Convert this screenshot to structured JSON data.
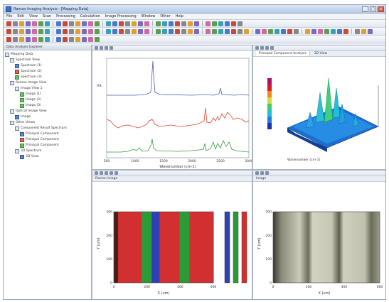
{
  "window": {
    "title": "Raman Imaging Analysis - [Mapping Data]"
  },
  "menu": [
    "File",
    "Edit",
    "View",
    "Scan",
    "Processing",
    "Calculation",
    "Image Processing",
    "Window",
    "Other",
    "Help"
  ],
  "left_panel": {
    "header": "Data Analysis Explorer",
    "tree": [
      {
        "label": "Mapping Data",
        "depth": 0,
        "icon": "folder"
      },
      {
        "label": "Spectrum View",
        "depth": 1,
        "icon": "folder"
      },
      {
        "label": "Spectrum (1)",
        "depth": 2,
        "icon": "blue"
      },
      {
        "label": "Spectrum (2)",
        "depth": 2,
        "icon": "red"
      },
      {
        "label": "Spectrum (3)",
        "depth": 2,
        "icon": "green"
      },
      {
        "label": "Raman Image View",
        "depth": 1,
        "icon": "folder"
      },
      {
        "label": "Image View 1",
        "depth": 2,
        "icon": "folder"
      },
      {
        "label": "Image (1)",
        "depth": 3,
        "icon": "green"
      },
      {
        "label": "Image (2)",
        "depth": 3,
        "icon": "green"
      },
      {
        "label": "Image (3)",
        "depth": 3,
        "icon": "green"
      },
      {
        "label": "Optical Image View",
        "depth": 1,
        "icon": "folder"
      },
      {
        "label": "Image",
        "depth": 2,
        "icon": "blue"
      },
      {
        "label": "Other Views",
        "depth": 1,
        "icon": "folder"
      },
      {
        "label": "Component Result Spectrum",
        "depth": 2,
        "icon": "folder"
      },
      {
        "label": "Principal Component",
        "depth": 3,
        "icon": "blue"
      },
      {
        "label": "Principal Component",
        "depth": 3,
        "icon": "red"
      },
      {
        "label": "Principal Component",
        "depth": 3,
        "icon": "green"
      },
      {
        "label": "3D Spectrum",
        "depth": 2,
        "icon": "folder"
      },
      {
        "label": "3D View",
        "depth": 3,
        "icon": "blue"
      }
    ]
  },
  "spectrum_pane": {
    "xlabel": "Wavenumber (cm-1)",
    "ylabel": "Int.",
    "xticks": [
      "500",
      "1000",
      "1500",
      "2000",
      "2500",
      "3000"
    ],
    "colors": {
      "blue": "#4a5fb8",
      "red": "#e0422c",
      "green": "#3a9a3a"
    }
  },
  "surface_pane": {
    "tabs": [
      "Principal Component Analysis",
      "3D View"
    ],
    "xlabel": "Wavenumber (cm-1)",
    "colorbar": [
      "#1c2fb0",
      "#1e7fe0",
      "#20c0d8",
      "#3ad070",
      "#d8d838",
      "#f08a20",
      "#d81e1e",
      "#b01070"
    ]
  },
  "raman_image_pane": {
    "title": "Raman Image",
    "ylabel": "Y (um)",
    "xlabel": "X (um)",
    "xticks": [
      "0",
      "200",
      "400",
      "600"
    ],
    "yticks": [
      "0",
      "100",
      "200",
      "300"
    ],
    "bands": [
      {
        "color": "#d23030",
        "width_frac": 0.28
      },
      {
        "color": "#2a9c36",
        "width_frac": 0.1
      },
      {
        "color": "#2f3fb6",
        "width_frac": 0.08
      },
      {
        "color": "#d23030",
        "width_frac": 0.2
      },
      {
        "color": "#2a9c36",
        "width_frac": 0.1
      },
      {
        "color": "#d23030",
        "width_frac": 0.24
      }
    ],
    "legend_colors": [
      "#2f3fb6",
      "#2a9c36",
      "#d23030"
    ]
  },
  "optical_pane": {
    "title": "Image",
    "ylabel": "Y (um)",
    "xlabel": "X (um)",
    "xticks": [
      "0",
      "200",
      "400",
      "600"
    ],
    "yticks": [
      "0",
      "100",
      "200",
      "300"
    ]
  }
}
